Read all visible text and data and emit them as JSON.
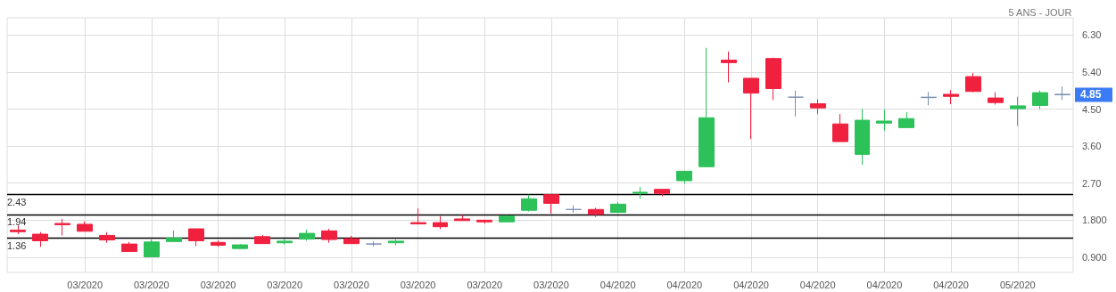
{
  "chart_data": {
    "type": "candlestick",
    "subtitle": "5 ANS - JOUR",
    "categories": [
      null,
      null,
      null,
      "03/2020",
      null,
      null,
      "03/2020",
      null,
      null,
      "03/2020",
      null,
      null,
      "03/2020",
      null,
      null,
      "03/2020",
      null,
      null,
      "03/2020",
      null,
      null,
      "03/2020",
      null,
      null,
      "03/2020",
      null,
      null,
      "04/2020",
      null,
      null,
      "04/2020",
      null,
      null,
      "04/2020",
      null,
      null,
      "04/2020",
      null,
      null,
      "04/2020",
      null,
      null,
      "04/2020",
      null,
      null,
      "05/2020",
      null,
      null
    ],
    "ohlc": [
      [
        1.56,
        1.67,
        1.46,
        1.52
      ],
      [
        1.46,
        1.51,
        1.15,
        1.3
      ],
      [
        1.72,
        1.83,
        1.43,
        1.69
      ],
      [
        1.7,
        1.77,
        1.53,
        1.53
      ],
      [
        1.43,
        1.51,
        1.25,
        1.32
      ],
      [
        1.22,
        1.27,
        1.04,
        1.04
      ],
      [
        0.91,
        1.33,
        0.91,
        1.27
      ],
      [
        1.28,
        1.55,
        1.28,
        1.37
      ],
      [
        1.59,
        1.59,
        1.17,
        1.3
      ],
      [
        1.26,
        1.31,
        1.15,
        1.19
      ],
      [
        1.11,
        1.22,
        1.11,
        1.2
      ],
      [
        1.4,
        1.44,
        1.23,
        1.23
      ],
      [
        1.25,
        1.34,
        1.21,
        1.29
      ],
      [
        1.34,
        1.57,
        1.3,
        1.48
      ],
      [
        1.54,
        1.59,
        1.25,
        1.33
      ],
      [
        1.35,
        1.42,
        1.23,
        1.23
      ],
      [
        1.22,
        1.29,
        1.16,
        1.22
      ],
      [
        1.25,
        1.34,
        1.19,
        1.29
      ],
      [
        1.74,
        2.09,
        1.71,
        1.71
      ],
      [
        1.74,
        1.9,
        1.58,
        1.64
      ],
      [
        1.83,
        1.92,
        1.79,
        1.79
      ],
      [
        1.8,
        1.8,
        1.72,
        1.76
      ],
      [
        1.76,
        1.92,
        1.76,
        1.9
      ],
      [
        2.04,
        2.42,
        2.01,
        2.32
      ],
      [
        2.42,
        2.42,
        1.96,
        2.21
      ],
      [
        2.06,
        2.16,
        1.98,
        2.06
      ],
      [
        2.06,
        2.1,
        1.88,
        1.94
      ],
      [
        1.99,
        2.24,
        1.99,
        2.19
      ],
      [
        2.45,
        2.61,
        2.32,
        2.48
      ],
      [
        2.55,
        2.55,
        2.38,
        2.45
      ],
      [
        2.76,
        2.99,
        2.69,
        2.99
      ],
      [
        3.1,
        5.99,
        3.1,
        4.29
      ],
      [
        5.69,
        5.9,
        5.15,
        5.63
      ],
      [
        5.25,
        5.25,
        3.77,
        4.89
      ],
      [
        5.73,
        5.75,
        4.72,
        5.0
      ],
      [
        4.79,
        4.95,
        4.32,
        4.79
      ],
      [
        4.63,
        4.74,
        4.38,
        4.53
      ],
      [
        4.14,
        4.38,
        3.71,
        3.71
      ],
      [
        3.4,
        4.51,
        3.15,
        4.23
      ],
      [
        4.16,
        4.49,
        3.98,
        4.21
      ],
      [
        4.05,
        4.43,
        4.05,
        4.27
      ],
      [
        4.79,
        4.92,
        4.59,
        4.78
      ],
      [
        4.86,
        4.96,
        4.62,
        4.81
      ],
      [
        5.29,
        5.38,
        4.91,
        4.93
      ],
      [
        4.77,
        4.91,
        4.61,
        4.66
      ],
      [
        4.51,
        4.8,
        4.09,
        4.58
      ],
      [
        4.59,
        4.95,
        4.5,
        4.9
      ],
      [
        4.86,
        5.05,
        4.72,
        4.85
      ]
    ],
    "colors": [
      "#f0203f",
      "#f0203f",
      "#f0203f",
      "#f0203f",
      "#f0203f",
      "#f0203f",
      "#2dc15a",
      "#2dc15a",
      "#f0203f",
      "#f0203f",
      "#2dc15a",
      "#f0203f",
      "#2dc15a",
      "#2dc15a",
      "#f0203f",
      "#f0203f",
      "#7a8fb0",
      "#2dc15a",
      "#f0203f",
      "#f0203f",
      "#f0203f",
      "#f0203f",
      "#2dc15a",
      "#2dc15a",
      "#f0203f",
      "#7a8fb0",
      "#f0203f",
      "#2dc15a",
      "#2dc15a",
      "#f0203f",
      "#2dc15a",
      "#2dc15a",
      "#f0203f",
      "#f0203f",
      "#f0203f",
      "#7a8fb0",
      "#f0203f",
      "#f0203f",
      "#2dc15a",
      "#2dc15a",
      "#2dc15a",
      "#7a8fb0",
      "#f0203f",
      "#f0203f",
      "#f0203f",
      "#2dc15a",
      "#2dc15a",
      "#7a8fb0"
    ],
    "ylim": [
      0.53,
      6.72
    ],
    "yticks": [
      {
        "value": 0.9,
        "label": "0.900"
      },
      {
        "value": 1.8,
        "label": "1.800"
      },
      {
        "value": 2.7,
        "label": "2.70"
      },
      {
        "value": 3.6,
        "label": "3.60"
      },
      {
        "value": 4.5,
        "label": "4.50"
      },
      {
        "value": 5.4,
        "label": "5.40"
      },
      {
        "value": 6.3,
        "label": "6.30"
      }
    ],
    "ref_lines": [
      {
        "axis": "y",
        "value": 2.43,
        "label": "2.43",
        "color": "#000000"
      },
      {
        "axis": "y",
        "value": 1.94,
        "label": "1.94",
        "color": "#000000"
      },
      {
        "axis": "y",
        "value": 1.36,
        "label": "1.36",
        "color": "#000000"
      }
    ],
    "annotations": [
      "4.85"
    ],
    "grid": true
  }
}
